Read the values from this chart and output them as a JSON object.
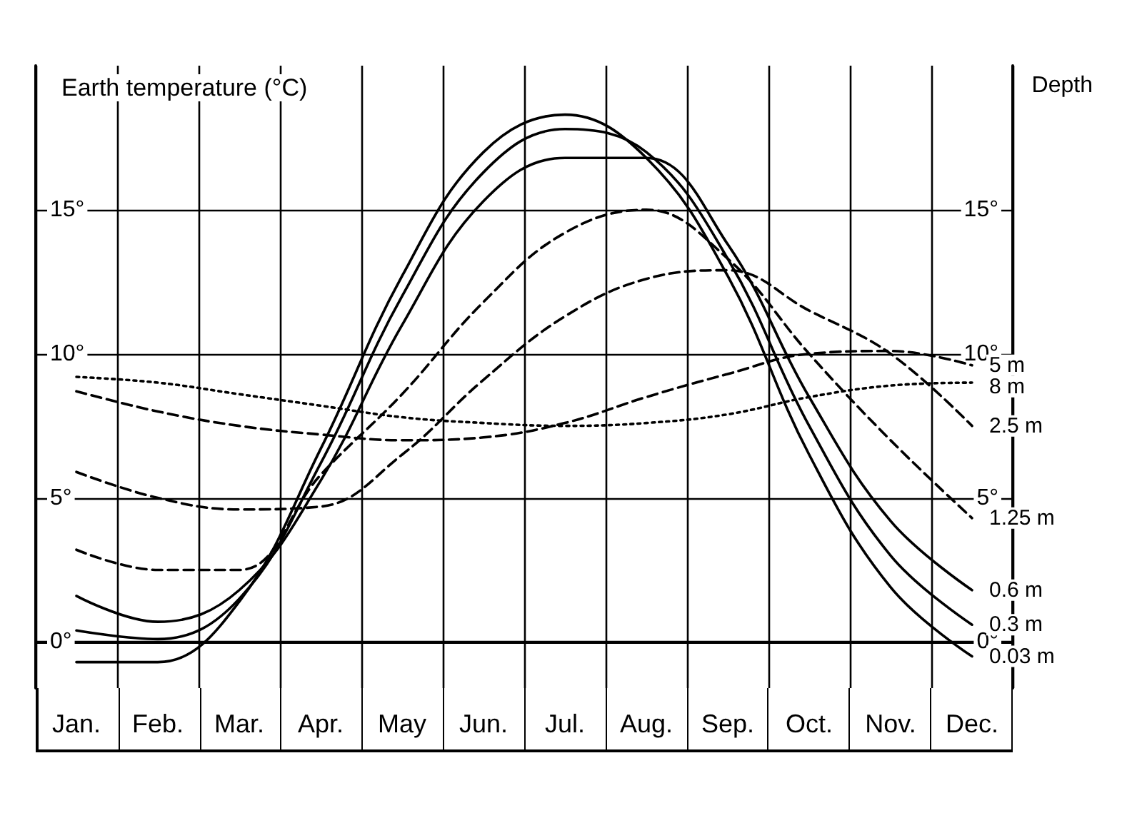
{
  "chart_data": {
    "type": "line",
    "ylabel": "Earth temperature (°C)",
    "legend_title": "Depth",
    "categories": [
      "Jan.",
      "Feb.",
      "Mar.",
      "Apr.",
      "May",
      "Jun.",
      "Jul.",
      "Aug.",
      "Sep.",
      "Oct.",
      "Nov.",
      "Dec."
    ],
    "series": [
      {
        "name": "0.03 m",
        "color": "#000000",
        "line_style": "solid",
        "values": [
          -0.7,
          -0.7,
          1.4,
          6.7,
          12.7,
          17,
          18.3,
          16.8,
          12.7,
          6.5,
          1.9,
          -0.5
        ]
      },
      {
        "name": "0.3 m",
        "color": "#000000",
        "line_style": "solid",
        "values": [
          0.4,
          0.1,
          1.5,
          6.2,
          12,
          16.3,
          17.8,
          17,
          13.3,
          7.5,
          3,
          0.6
        ]
      },
      {
        "name": "0.6 m",
        "color": "#000000",
        "line_style": "solid",
        "values": [
          1.6,
          0.7,
          1.8,
          5.6,
          11,
          15.3,
          16.8,
          16.8,
          13.8,
          8.5,
          4.2,
          1.8
        ]
      },
      {
        "name": "1.25 m",
        "color": "#000000",
        "line_style": "dashed",
        "values": [
          3.2,
          2.5,
          2.5,
          5.8,
          8.6,
          11.8,
          14.2,
          15,
          13.3,
          10,
          7,
          4.3
        ]
      },
      {
        "name": "2.5 m",
        "color": "#000000",
        "line_style": "dashed",
        "values": [
          5.9,
          5,
          4.6,
          4.7,
          6.5,
          9.1,
          11.3,
          12.6,
          12.9,
          11.5,
          10,
          7.5
        ]
      },
      {
        "name": "5 m",
        "color": "#000000",
        "line_style": "dashed",
        "values": [
          8.7,
          8,
          7.5,
          7.2,
          7,
          7.1,
          7.6,
          8.5,
          9.3,
          10,
          10.1,
          9.6
        ]
      },
      {
        "name": "8 m",
        "color": "#000000",
        "line_style": "dotted",
        "values": [
          9.2,
          9,
          8.6,
          8.2,
          7.8,
          7.6,
          7.5,
          7.6,
          7.9,
          8.5,
          8.9,
          9
        ]
      }
    ],
    "ylim": [
      -1.6,
      20
    ],
    "yticks": [
      {
        "value": 0,
        "label": "0°"
      },
      {
        "value": 5,
        "label": "5°"
      },
      {
        "value": 10,
        "label": "10°"
      },
      {
        "value": 15,
        "label": "15°"
      }
    ],
    "y2lim": [
      -1.6,
      20
    ],
    "y2ticks": [
      {
        "value": 0,
        "label": "0°"
      },
      {
        "value": 5,
        "label": "5°"
      },
      {
        "value": 10,
        "label": "10°"
      },
      {
        "value": 15,
        "label": "15°"
      }
    ],
    "grid": true,
    "marker": "none"
  }
}
